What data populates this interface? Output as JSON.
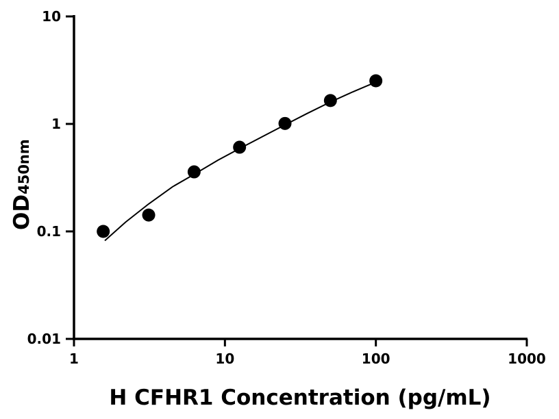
{
  "chart_data": {
    "type": "scatter",
    "title": "",
    "xlabel": "H CFHR1 Concentration (pg/mL)",
    "ylabel": "OD",
    "ylabel_subscript": "450nm",
    "x_scale": "log",
    "y_scale": "log",
    "xlim": [
      1,
      1000
    ],
    "ylim": [
      0.01,
      10
    ],
    "x_ticks": [
      "1",
      "10",
      "100",
      "1000"
    ],
    "y_ticks": [
      "0.01",
      "0.1",
      "1",
      "10"
    ],
    "grid": false,
    "legend": "none",
    "points": {
      "x": [
        1.5625,
        3.125,
        6.25,
        12.5,
        25,
        50,
        100
      ],
      "y": [
        0.1,
        0.142,
        0.358,
        0.607,
        1.01,
        1.65,
        2.52
      ]
    },
    "fit_curve": {
      "x": [
        1.6,
        2.2,
        3.125,
        4.5,
        6.25,
        9,
        12.5,
        18,
        25,
        35,
        50,
        70,
        100
      ],
      "y": [
        0.082,
        0.122,
        0.18,
        0.26,
        0.34,
        0.46,
        0.59,
        0.77,
        0.98,
        1.25,
        1.6,
        1.98,
        2.45
      ]
    },
    "colors": {
      "points": "#000000",
      "curve": "#000000",
      "axes": "#000000"
    }
  }
}
